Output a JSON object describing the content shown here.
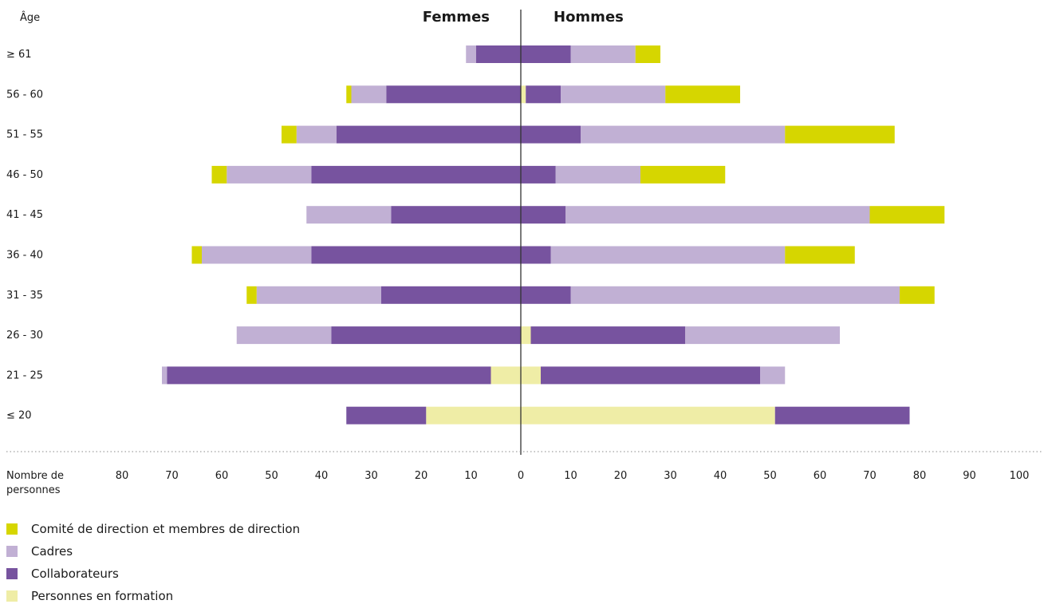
{
  "chart_data": {
    "type": "bar",
    "orientation": "horizontal-population-pyramid",
    "y_axis_title": "Âge",
    "x_axis_title_line1": "Nombre de",
    "x_axis_title_line2": "personnes",
    "left_header": "Femmes",
    "right_header": "Hommes",
    "x_ticks_left": [
      80,
      70,
      60,
      50,
      40,
      30,
      20,
      10
    ],
    "x_ticks_right": [
      0,
      10,
      20,
      30,
      40,
      50,
      60,
      70,
      80,
      90,
      100
    ],
    "categories": [
      "≥ 61",
      "56 - 60",
      "51 - 55",
      "46 - 50",
      "41 - 45",
      "36 - 40",
      "31 - 35",
      "26 - 30",
      "21 - 25",
      "≤ 20"
    ],
    "stack_order": [
      "formation",
      "collaborateurs",
      "cadres",
      "direction"
    ],
    "series": {
      "direction": {
        "name": "Comité de direction et membres de direction",
        "color": "#d6d600",
        "femmes": [
          0,
          1,
          3,
          3,
          0,
          2,
          2,
          0,
          0,
          0
        ],
        "hommes": [
          5,
          15,
          22,
          17,
          15,
          14,
          7,
          0,
          0,
          0
        ]
      },
      "cadres": {
        "name": "Cadres",
        "color": "#c1b0d4",
        "femmes": [
          2,
          7,
          8,
          17,
          17,
          22,
          25,
          19,
          1,
          0
        ],
        "hommes": [
          13,
          21,
          41,
          17,
          61,
          47,
          66,
          31,
          5,
          0
        ]
      },
      "collaborateurs": {
        "name": "Collaborateurs",
        "color": "#77539f",
        "femmes": [
          9,
          27,
          37,
          42,
          26,
          42,
          28,
          38,
          65,
          16
        ],
        "hommes": [
          10,
          7,
          12,
          7,
          9,
          6,
          10,
          31,
          44,
          27
        ]
      },
      "formation": {
        "name": "Personnes en formation",
        "color": "#efeda6",
        "femmes": [
          0,
          0,
          0,
          0,
          0,
          0,
          0,
          0,
          6,
          19
        ],
        "hommes": [
          0,
          1,
          0,
          0,
          0,
          0,
          0,
          2,
          4,
          51
        ]
      }
    }
  },
  "legend_order": [
    "direction",
    "cadres",
    "collaborateurs",
    "formation"
  ]
}
